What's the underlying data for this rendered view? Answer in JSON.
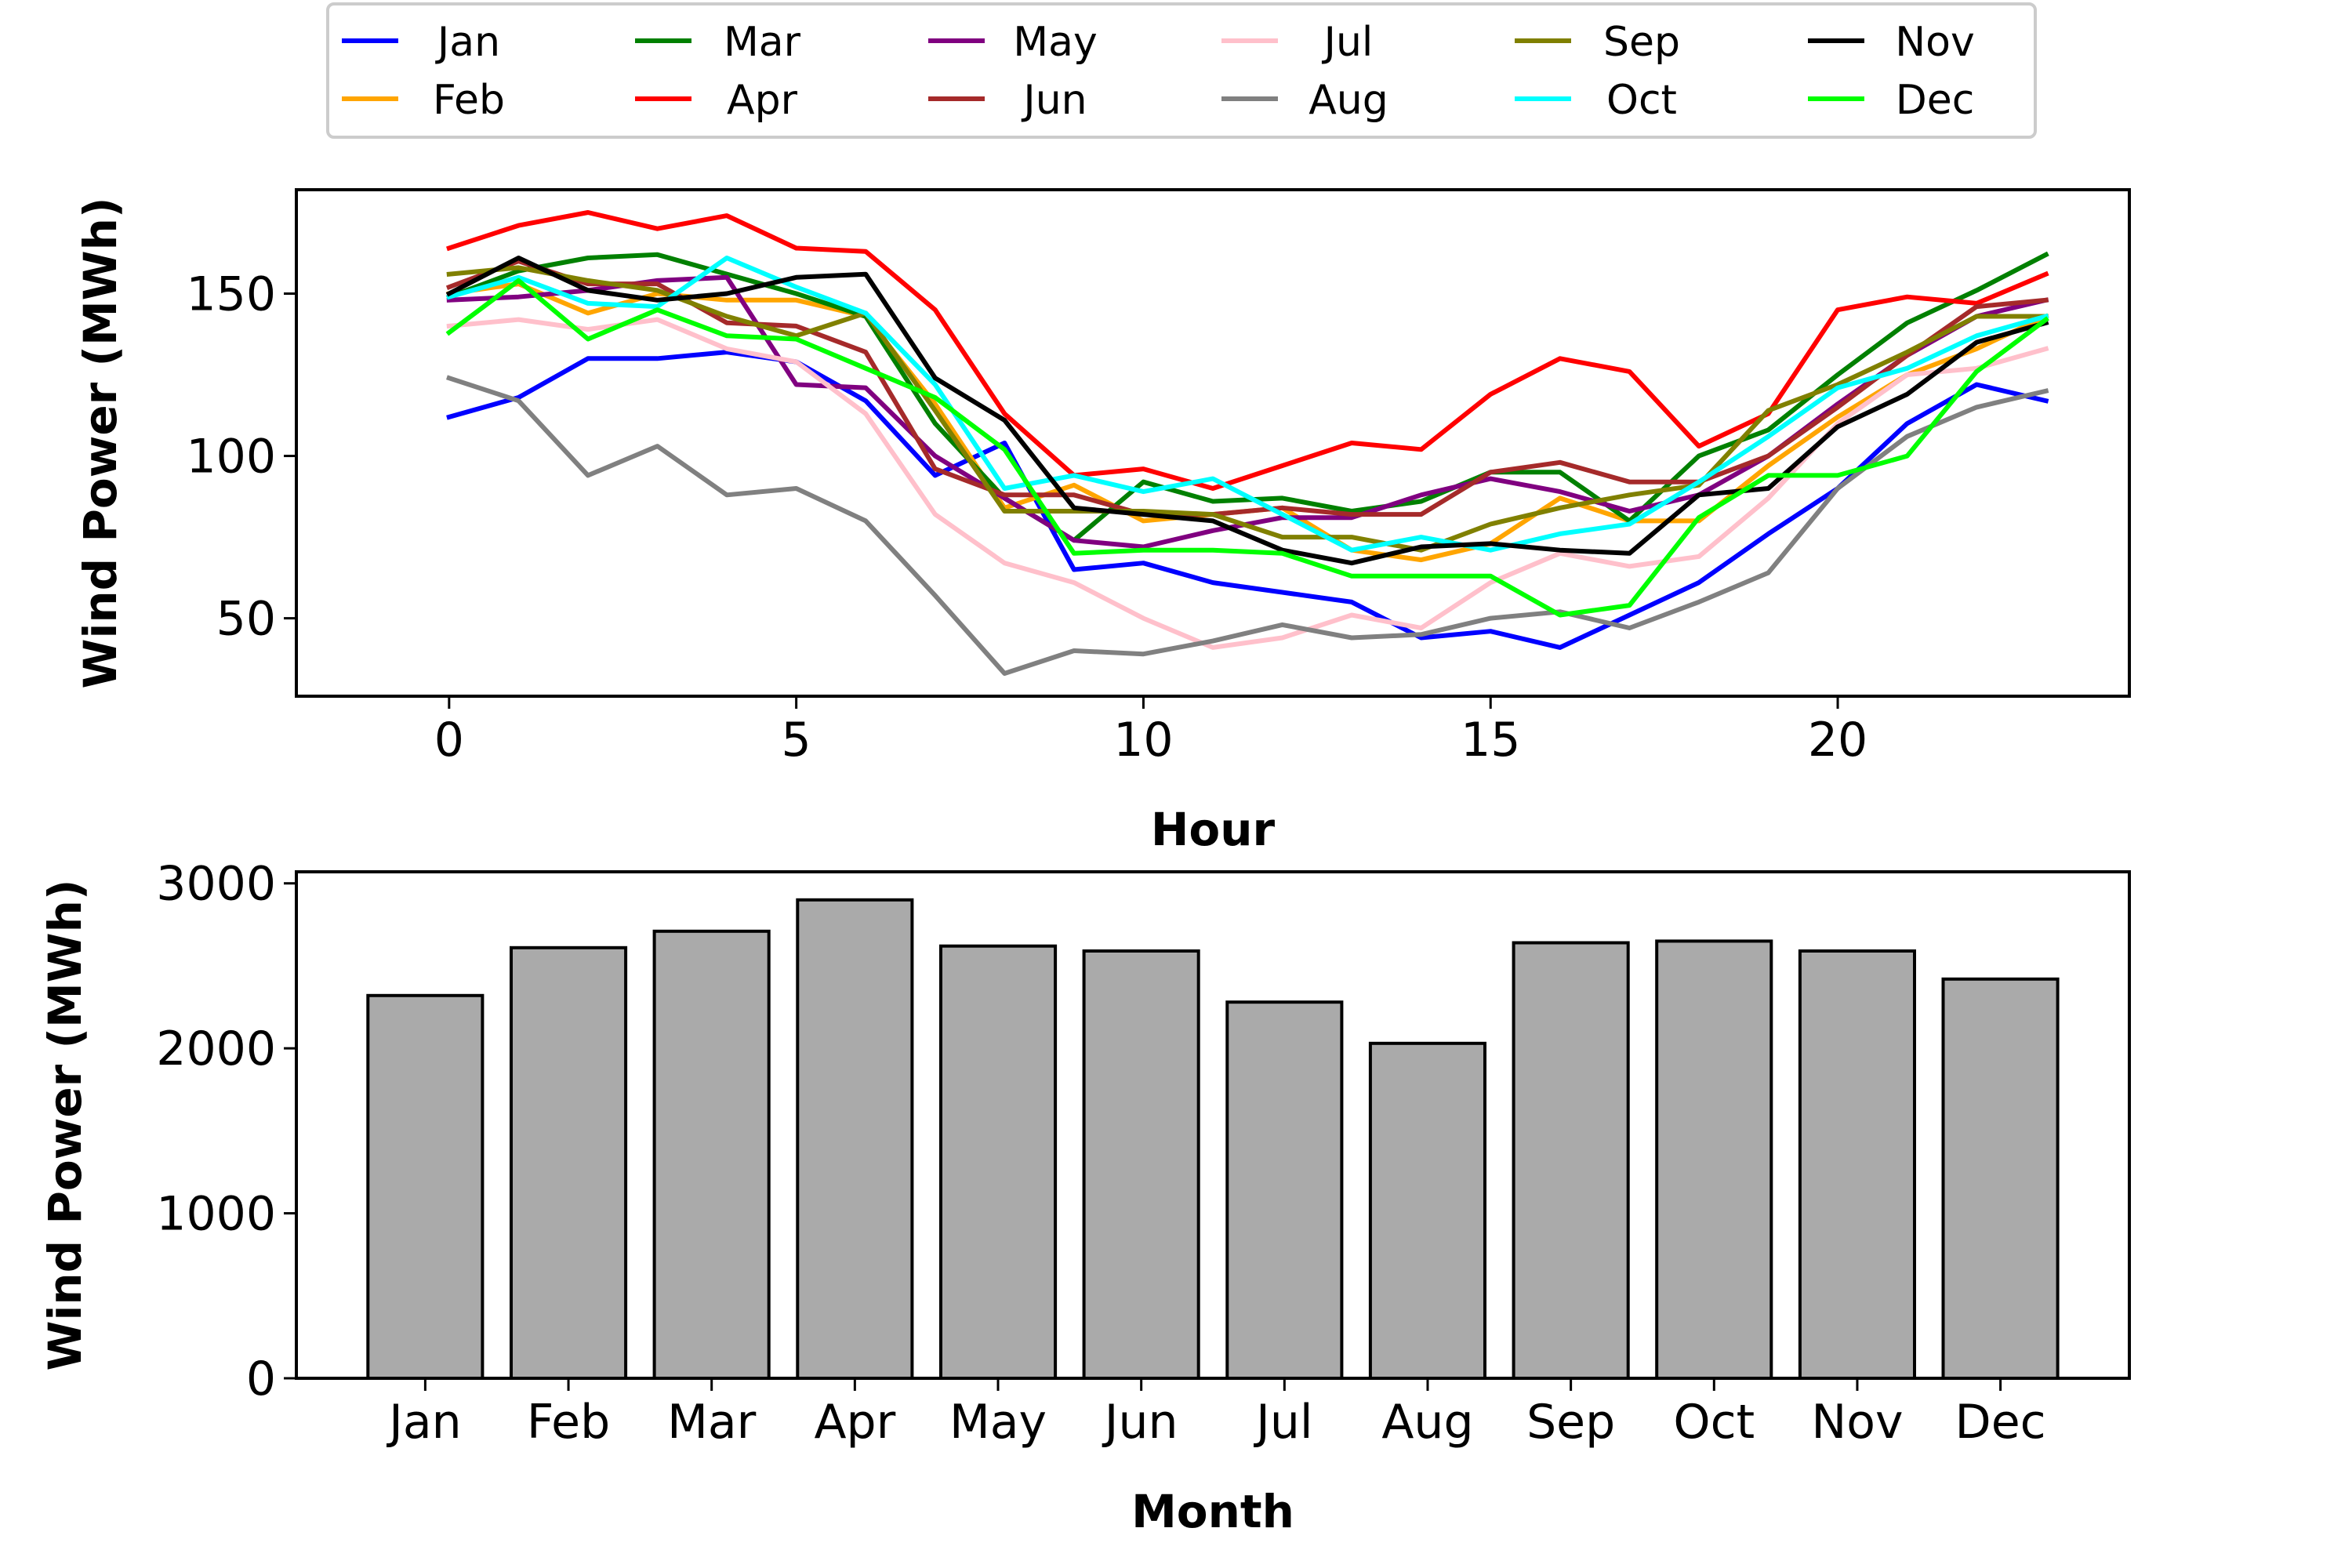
{
  "chart_data": [
    {
      "type": "line",
      "title": "",
      "xlabel": "Hour",
      "ylabel": "Wind Power (MWh)",
      "xlim": [
        -2.2,
        24.2
      ],
      "ylim": [
        26,
        182
      ],
      "xticks": [
        0,
        5,
        10,
        15,
        20
      ],
      "yticks": [
        50,
        100,
        150
      ],
      "grid": false,
      "legend_position": "top-center",
      "legend_columns": 6,
      "x": [
        0,
        1,
        2,
        3,
        4,
        5,
        6,
        7,
        8,
        9,
        10,
        11,
        12,
        13,
        14,
        15,
        16,
        17,
        18,
        19,
        20,
        21,
        22,
        23
      ],
      "series": [
        {
          "name": "Jan",
          "color": "#0000ff",
          "values": [
            112,
            118,
            130,
            130,
            132,
            129,
            117,
            94,
            104,
            65,
            67,
            61,
            58,
            55,
            44,
            46,
            41,
            51,
            61,
            76,
            90,
            110,
            122,
            117
          ]
        },
        {
          "name": "Feb",
          "color": "#ffa500",
          "values": [
            150,
            153,
            144,
            150,
            148,
            148,
            143,
            116,
            84,
            91,
            80,
            82,
            84,
            71,
            68,
            73,
            87,
            80,
            80,
            97,
            112,
            125,
            133,
            143
          ]
        },
        {
          "name": "Mar",
          "color": "#008000",
          "values": [
            149,
            157,
            161,
            162,
            156,
            150,
            143,
            110,
            87,
            74,
            92,
            86,
            87,
            83,
            86,
            95,
            95,
            80,
            100,
            108,
            125,
            141,
            151,
            162
          ]
        },
        {
          "name": "Apr",
          "color": "#ff0000",
          "values": [
            164,
            171,
            175,
            170,
            174,
            164,
            163,
            145,
            113,
            94,
            96,
            90,
            97,
            104,
            102,
            119,
            130,
            126,
            103,
            113,
            145,
            149,
            147,
            156
          ]
        },
        {
          "name": "May",
          "color": "#800080",
          "values": [
            148,
            149,
            151,
            154,
            155,
            122,
            121,
            100,
            87,
            74,
            72,
            77,
            81,
            81,
            88,
            93,
            89,
            83,
            88,
            100,
            116,
            131,
            143,
            148
          ]
        },
        {
          "name": "Jun",
          "color": "#a52a2a",
          "values": [
            152,
            160,
            153,
            153,
            141,
            140,
            132,
            96,
            88,
            88,
            82,
            82,
            84,
            82,
            82,
            95,
            98,
            92,
            92,
            100,
            115,
            131,
            146,
            148
          ]
        },
        {
          "name": "Jul",
          "color": "#ffc0cb",
          "values": [
            140,
            142,
            139,
            142,
            133,
            129,
            113,
            82,
            67,
            61,
            50,
            41,
            44,
            51,
            47,
            61,
            70,
            66,
            69,
            87,
            110,
            125,
            127,
            133
          ]
        },
        {
          "name": "Aug",
          "color": "#808080",
          "values": [
            124,
            117,
            94,
            103,
            88,
            90,
            80,
            57,
            33,
            40,
            39,
            43,
            48,
            44,
            45,
            50,
            52,
            47,
            55,
            64,
            90,
            106,
            115,
            120
          ]
        },
        {
          "name": "Sep",
          "color": "#808000",
          "values": [
            156,
            158,
            154,
            151,
            143,
            137,
            144,
            114,
            83,
            83,
            83,
            82,
            75,
            75,
            71,
            79,
            84,
            88,
            91,
            114,
            122,
            132,
            143,
            143
          ]
        },
        {
          "name": "Oct",
          "color": "#00ffff",
          "values": [
            149,
            155,
            147,
            146,
            161,
            152,
            144,
            122,
            90,
            94,
            89,
            93,
            82,
            71,
            75,
            71,
            76,
            79,
            92,
            106,
            121,
            127,
            137,
            143
          ]
        },
        {
          "name": "Nov",
          "color": "#000000",
          "values": [
            150,
            161,
            151,
            148,
            150,
            155,
            156,
            124,
            111,
            84,
            82,
            80,
            71,
            67,
            72,
            73,
            71,
            70,
            88,
            90,
            109,
            119,
            135,
            141
          ]
        },
        {
          "name": "Dec",
          "color": "#00ff00",
          "values": [
            138,
            154,
            136,
            145,
            137,
            136,
            127,
            118,
            102,
            70,
            71,
            71,
            70,
            63,
            63,
            63,
            51,
            54,
            81,
            94,
            94,
            100,
            126,
            142
          ]
        }
      ]
    },
    {
      "type": "bar",
      "title": "",
      "xlabel": "Month",
      "ylabel": "Wind Power (MWh)",
      "ylim": [
        0,
        3070
      ],
      "yticks": [
        0,
        1000,
        2000,
        3000
      ],
      "grid": false,
      "bar_color": "#aaaaaa",
      "edge_color": "#000000",
      "categories": [
        "Jan",
        "Feb",
        "Mar",
        "Apr",
        "May",
        "Jun",
        "Jul",
        "Aug",
        "Sep",
        "Oct",
        "Nov",
        "Dec"
      ],
      "values": [
        2320,
        2610,
        2710,
        2900,
        2620,
        2590,
        2280,
        2030,
        2640,
        2650,
        2590,
        2420
      ]
    }
  ]
}
